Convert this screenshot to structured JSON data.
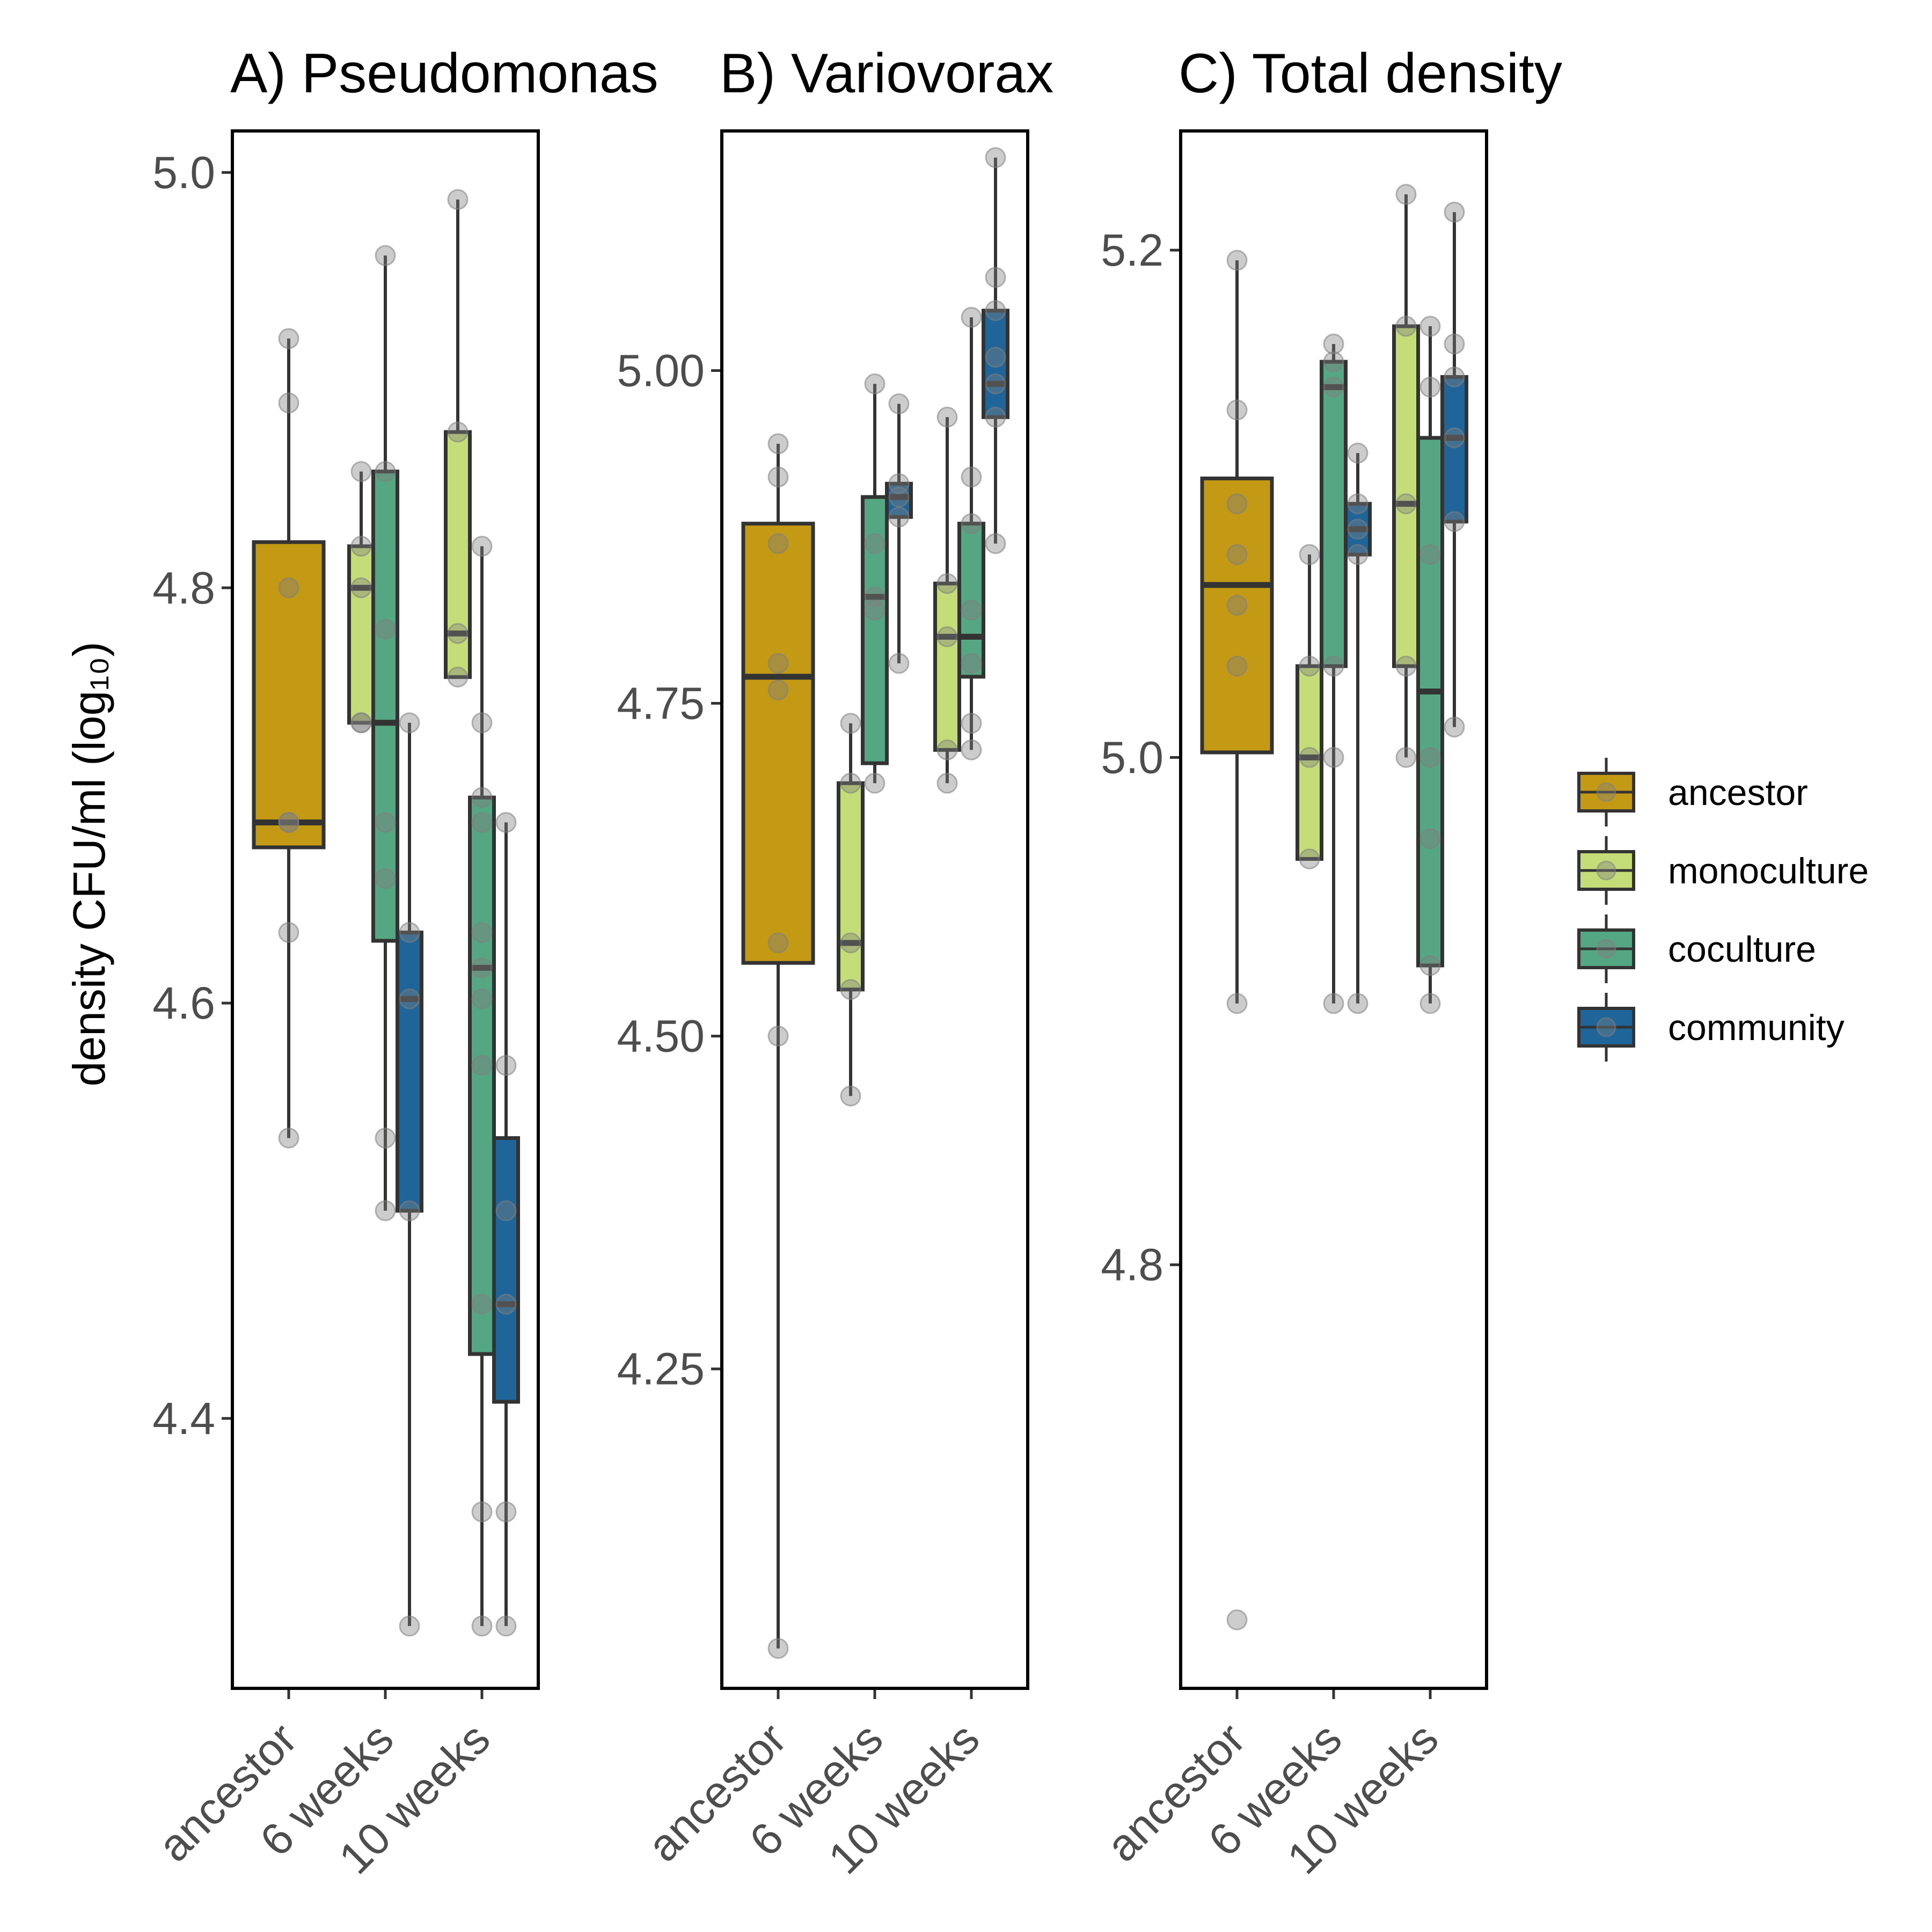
{
  "legend": {
    "entries": [
      {
        "label": "ancestor",
        "color": "#C49A14"
      },
      {
        "label": "monoculture",
        "color": "#C5DD79"
      },
      {
        "label": "coculture",
        "color": "#55A683"
      },
      {
        "label": "community",
        "color": "#1F6599"
      }
    ]
  },
  "chart_data": [
    {
      "type": "box",
      "title": "A) Pseudomonas",
      "ylabel": "density CFU/ml (log₁₀)",
      "ylim": [
        4.27,
        5.02
      ],
      "yticks": [
        4.4,
        4.6,
        4.8,
        5.0
      ],
      "ytick_labels": [
        "4.4",
        "4.6",
        "4.8",
        "5.0"
      ],
      "categories": [
        "ancestor",
        "6 weeks",
        "10 weeks"
      ],
      "boxes": [
        {
          "category": "ancestor",
          "group": "ancestor",
          "min": 4.535,
          "q1": 4.675,
          "median": 4.687,
          "q3": 4.822,
          "max": 4.92,
          "points": [
            4.92,
            4.889,
            4.8,
            4.687,
            4.687,
            4.634,
            4.535
          ]
        },
        {
          "category": "6 weeks",
          "group": "monoculture",
          "min": 4.735,
          "q1": 4.735,
          "median": 4.8,
          "q3": 4.82,
          "max": 4.856,
          "points": [
            4.856,
            4.82,
            4.8,
            4.735,
            4.735
          ]
        },
        {
          "category": "6 weeks",
          "group": "coculture",
          "min": 4.5,
          "q1": 4.63,
          "median": 4.735,
          "q3": 4.856,
          "max": 4.96,
          "points": [
            4.96,
            4.856,
            4.78,
            4.687,
            4.66,
            4.535,
            4.5
          ]
        },
        {
          "category": "6 weeks",
          "group": "community",
          "min": 4.3,
          "q1": 4.5,
          "median": 4.602,
          "q3": 4.634,
          "max": 4.735,
          "points": [
            4.735,
            4.634,
            4.602,
            4.5,
            4.3
          ]
        },
        {
          "category": "10 weeks",
          "group": "monoculture",
          "min": 4.757,
          "q1": 4.757,
          "median": 4.778,
          "q3": 4.875,
          "max": 4.987,
          "points": [
            4.987,
            4.875,
            4.778,
            4.757
          ]
        },
        {
          "category": "10 weeks",
          "group": "coculture",
          "min": 4.3,
          "q1": 4.431,
          "median": 4.617,
          "q3": 4.699,
          "max": 4.82,
          "points": [
            4.82,
            4.735,
            4.699,
            4.687,
            4.634,
            4.617,
            4.602,
            4.57,
            4.455,
            4.355,
            4.3
          ]
        },
        {
          "category": "10 weeks",
          "group": "community",
          "min": 4.3,
          "q1": 4.408,
          "median": 4.455,
          "q3": 4.535,
          "max": 4.687,
          "points": [
            4.687,
            4.57,
            4.5,
            4.455,
            4.355,
            4.3
          ]
        }
      ]
    },
    {
      "type": "box",
      "title": "B) Variovorax",
      "ylim": [
        4.01,
        5.18
      ],
      "yticks": [
        4.25,
        4.5,
        4.75,
        5.0
      ],
      "ytick_labels": [
        "4.25",
        "4.50",
        "4.75",
        "5.00"
      ],
      "categories": [
        "ancestor",
        "6 weeks",
        "10 weeks"
      ],
      "boxes": [
        {
          "category": "ancestor",
          "group": "ancestor",
          "min": 4.04,
          "q1": 4.555,
          "median": 4.77,
          "q3": 4.885,
          "max": 4.945,
          "points": [
            4.945,
            4.92,
            4.87,
            4.78,
            4.76,
            4.57,
            4.5,
            4.04
          ]
        },
        {
          "category": "6 weeks",
          "group": "monoculture",
          "min": 4.455,
          "q1": 4.535,
          "median": 4.57,
          "q3": 4.69,
          "max": 4.735,
          "points": [
            4.735,
            4.69,
            4.57,
            4.535,
            4.455
          ]
        },
        {
          "category": "6 weeks",
          "group": "coculture",
          "min": 4.69,
          "q1": 4.705,
          "median": 4.83,
          "q3": 4.905,
          "max": 4.99,
          "points": [
            4.99,
            4.87,
            4.83,
            4.82,
            4.69
          ]
        },
        {
          "category": "6 weeks",
          "group": "community",
          "min": 4.78,
          "q1": 4.89,
          "median": 4.905,
          "q3": 4.915,
          "max": 4.975,
          "points": [
            4.975,
            4.915,
            4.905,
            4.89,
            4.78
          ]
        },
        {
          "category": "10 weeks",
          "group": "monoculture",
          "min": 4.69,
          "q1": 4.715,
          "median": 4.8,
          "q3": 4.84,
          "max": 4.965,
          "points": [
            4.965,
            4.84,
            4.8,
            4.715,
            4.69
          ]
        },
        {
          "category": "10 weeks",
          "group": "coculture",
          "min": 4.715,
          "q1": 4.77,
          "median": 4.8,
          "q3": 4.885,
          "max": 5.04,
          "points": [
            5.04,
            4.92,
            4.885,
            4.82,
            4.78,
            4.735,
            4.715
          ]
        },
        {
          "category": "10 weeks",
          "group": "community",
          "min": 4.87,
          "q1": 4.965,
          "median": 4.99,
          "q3": 5.045,
          "max": 5.16,
          "points": [
            5.16,
            5.07,
            5.045,
            5.01,
            4.99,
            4.965,
            4.87
          ]
        }
      ]
    },
    {
      "type": "box",
      "title": "C) Total density",
      "ylim": [
        4.633,
        5.247
      ],
      "yticks": [
        4.8,
        5.0,
        5.2
      ],
      "ytick_labels": [
        "4.8",
        "5.0",
        "5.2"
      ],
      "categories": [
        "ancestor",
        "6 weeks",
        "10 weeks"
      ],
      "boxes": [
        {
          "category": "ancestor",
          "group": "ancestor",
          "min": 4.903,
          "q1": 5.002,
          "median": 5.068,
          "q3": 5.11,
          "max": 5.196,
          "points": [
            5.196,
            5.137,
            5.1,
            5.08,
            5.06,
            5.036,
            4.903,
            4.66
          ]
        },
        {
          "category": "6 weeks",
          "group": "monoculture",
          "min": 4.96,
          "q1": 4.96,
          "median": 5.0,
          "q3": 5.036,
          "max": 5.08,
          "points": [
            5.08,
            5.036,
            5.0,
            4.96
          ]
        },
        {
          "category": "6 weeks",
          "group": "coculture",
          "min": 4.903,
          "q1": 5.036,
          "median": 5.146,
          "q3": 5.156,
          "max": 5.163,
          "points": [
            5.163,
            5.156,
            5.146,
            5.036,
            5.0,
            4.903
          ]
        },
        {
          "category": "6 weeks",
          "group": "community",
          "min": 4.903,
          "q1": 5.08,
          "median": 5.09,
          "q3": 5.1,
          "max": 5.12,
          "points": [
            5.12,
            5.1,
            5.09,
            5.08,
            4.903
          ]
        },
        {
          "category": "10 weeks",
          "group": "monoculture",
          "min": 5.0,
          "q1": 5.036,
          "median": 5.1,
          "q3": 5.17,
          "max": 5.222,
          "points": [
            5.222,
            5.17,
            5.1,
            5.036,
            5.0
          ]
        },
        {
          "category": "10 weeks",
          "group": "coculture",
          "min": 4.903,
          "q1": 4.918,
          "median": 5.026,
          "q3": 5.126,
          "max": 5.17,
          "points": [
            5.17,
            5.146,
            5.08,
            5.0,
            4.968,
            4.918,
            4.903
          ]
        },
        {
          "category": "10 weeks",
          "group": "community",
          "min": 5.012,
          "q1": 5.093,
          "median": 5.126,
          "q3": 5.15,
          "max": 5.215,
          "points": [
            5.215,
            5.163,
            5.15,
            5.126,
            5.093,
            5.012
          ]
        }
      ]
    }
  ]
}
